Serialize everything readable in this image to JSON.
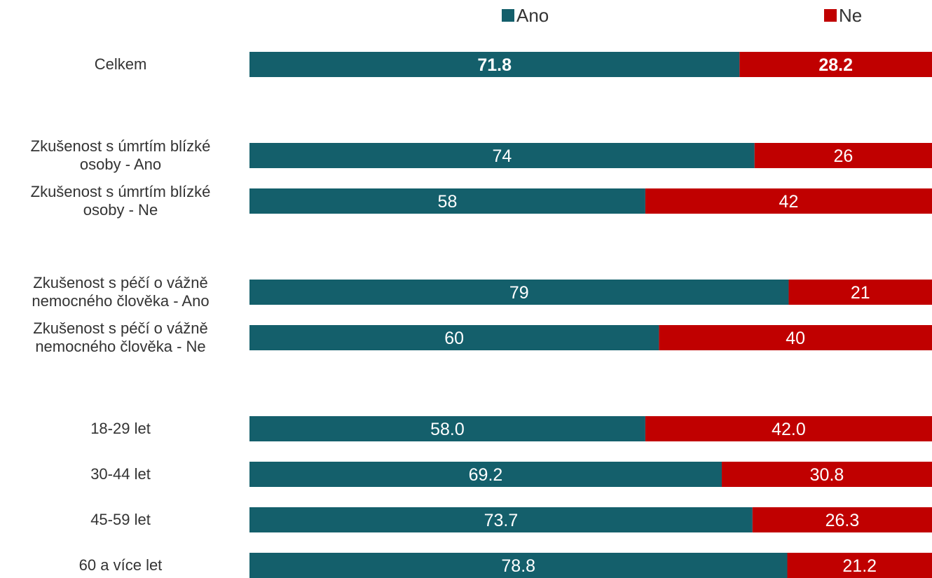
{
  "colors": {
    "ano": "#145f6b",
    "ne": "#c00000"
  },
  "chart_data": {
    "type": "bar",
    "orientation": "horizontal",
    "stacked": true,
    "legend_position": "top",
    "xlim": [
      0,
      100
    ],
    "grid": false,
    "series": [
      {
        "name": "Ano",
        "color": "#145f6b"
      },
      {
        "name": "Ne",
        "color": "#c00000"
      }
    ],
    "rows": [
      {
        "label": [
          "Celkem"
        ],
        "ano": 71.8,
        "ne": 28.2,
        "ano_text": "71.8",
        "ne_text": "28.2",
        "bold": true
      },
      {
        "label": [
          "Zkušenost s úmrtím blízké",
          "osoby - Ano"
        ],
        "ano": 74,
        "ne": 26,
        "ano_text": "74",
        "ne_text": "26",
        "bold": false
      },
      {
        "label": [
          "Zkušenost s úmrtím blízké",
          "osoby - Ne"
        ],
        "ano": 58,
        "ne": 42,
        "ano_text": "58",
        "ne_text": "42",
        "bold": false
      },
      {
        "label": [
          "Zkušenost s péčí o vážně",
          "nemocného člověka - Ano"
        ],
        "ano": 79,
        "ne": 21,
        "ano_text": "79",
        "ne_text": "21",
        "bold": false
      },
      {
        "label": [
          "Zkušenost s péčí o vážně",
          "nemocného člověka - Ne"
        ],
        "ano": 60,
        "ne": 40,
        "ano_text": "60",
        "ne_text": "40",
        "bold": false
      },
      {
        "label": [
          "18-29 let"
        ],
        "ano": 58.0,
        "ne": 42.0,
        "ano_text": "58.0",
        "ne_text": "42.0",
        "bold": false
      },
      {
        "label": [
          "30-44 let"
        ],
        "ano": 69.2,
        "ne": 30.8,
        "ano_text": "69.2",
        "ne_text": "30.8",
        "bold": false
      },
      {
        "label": [
          "45-59 let"
        ],
        "ano": 73.7,
        "ne": 26.3,
        "ano_text": "73.7",
        "ne_text": "26.3",
        "bold": false
      },
      {
        "label": [
          "60 a více let"
        ],
        "ano": 78.8,
        "ne": 21.2,
        "ano_text": "78.8",
        "ne_text": "21.2",
        "bold": false
      }
    ]
  }
}
